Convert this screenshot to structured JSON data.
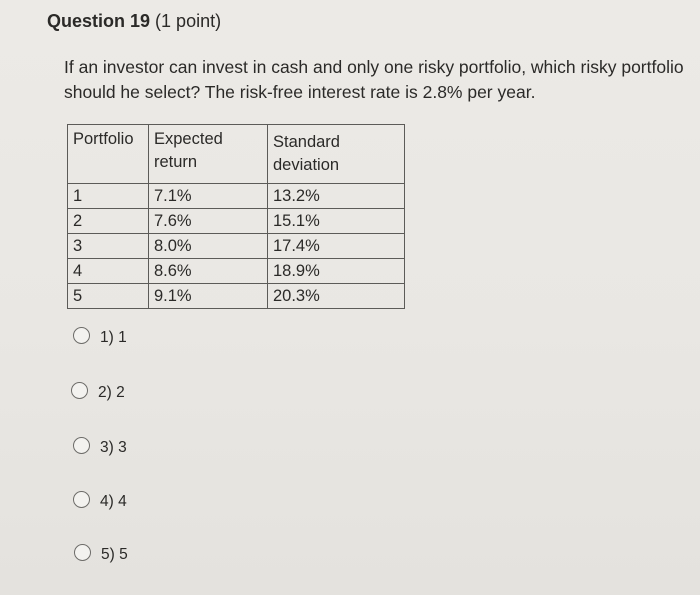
{
  "question": {
    "title": "Question 19",
    "points": "(1 point)",
    "text": "If an investor can invest in cash and only one risky portfolio, which risky portfolio should he select? The risk-free interest rate is 2.8% per year."
  },
  "table": {
    "headers": [
      "Portfolio",
      "Expected return",
      "Standard deviation"
    ],
    "rows": [
      [
        "1",
        "7.1%",
        "13.2%"
      ],
      [
        "2",
        "7.6%",
        "15.1%"
      ],
      [
        "3",
        "8.0%",
        "17.4%"
      ],
      [
        "4",
        "8.6%",
        "18.9%"
      ],
      [
        "5",
        "9.1%",
        "20.3%"
      ]
    ]
  },
  "options": [
    {
      "label": "1) 1"
    },
    {
      "label": "2) 2"
    },
    {
      "label": "3) 3"
    },
    {
      "label": "4) 4"
    },
    {
      "label": "5) 5"
    }
  ]
}
